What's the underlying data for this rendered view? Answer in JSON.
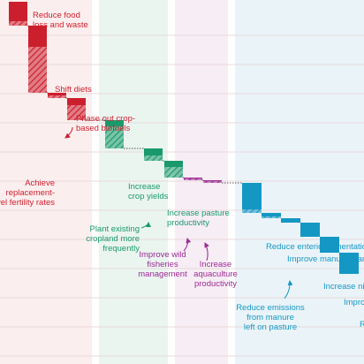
{
  "chart_data": {
    "type": "waterfall",
    "title": "",
    "xlabel": "",
    "ylabel": "",
    "grid": true,
    "colors": {
      "demand": "#cc1f2e",
      "land": "#1a9a6c",
      "fisheries": "#9b2a93",
      "agriculture": "#1597c4",
      "band_demand": "#fbeeee",
      "band_land": "#eaf5f0",
      "band_fisheries": "#f7edf5",
      "band_agriculture": "#eaf4f8",
      "gridline": "#e8d9db"
    },
    "steps": [
      {
        "label": "Reduce food\nloss and waste",
        "group": "demand",
        "solid": 22,
        "hatched": 5
      },
      {
        "label": "Shift diets",
        "group": "demand",
        "solid": 24,
        "hatched": 52
      },
      {
        "label": "Phase out crop-\nbased biofuels",
        "group": "demand",
        "solid": 3,
        "hatched": 3
      },
      {
        "label": "Achieve\nreplacement-\nlevel fertility rates",
        "group": "demand",
        "solid": 8,
        "hatched": 17
      },
      {
        "label": "Increase\ncrop yields",
        "group": "land",
        "solid": 7,
        "hatched": 25
      },
      {
        "label": "Plant existing\ncropland more\nfrequently",
        "group": "land",
        "solid": 8,
        "hatched": 6
      },
      {
        "label": "Increase pasture\nproductivity",
        "group": "land",
        "solid": 7,
        "hatched": 12
      },
      {
        "label": "Improve wild\nfisheries\nmanagement",
        "group": "fisheries",
        "solid": 1,
        "hatched": 2
      },
      {
        "label": "Increase\naquaculture\nproductivity",
        "group": "fisheries",
        "solid": 1,
        "hatched": 2
      },
      {
        "label": "Reduce enteric fermentation",
        "group": "agriculture",
        "solid": 30,
        "hatched": 4
      },
      {
        "label": "Reduce emissions\nfrom manure\nleft on pasture",
        "group": "agriculture",
        "solid": 4,
        "hatched": 2
      },
      {
        "label": "Improve manure management",
        "group": "agriculture",
        "solid": 5,
        "hatched": 0
      },
      {
        "label": "Increase nitro",
        "group": "agriculture",
        "solid": 16,
        "hatched": 0
      },
      {
        "label": "Improv",
        "group": "agriculture",
        "solid": 18,
        "hatched": 0
      },
      {
        "label": "R",
        "group": "agriculture",
        "solid": 24,
        "hatched": 0
      }
    ]
  }
}
